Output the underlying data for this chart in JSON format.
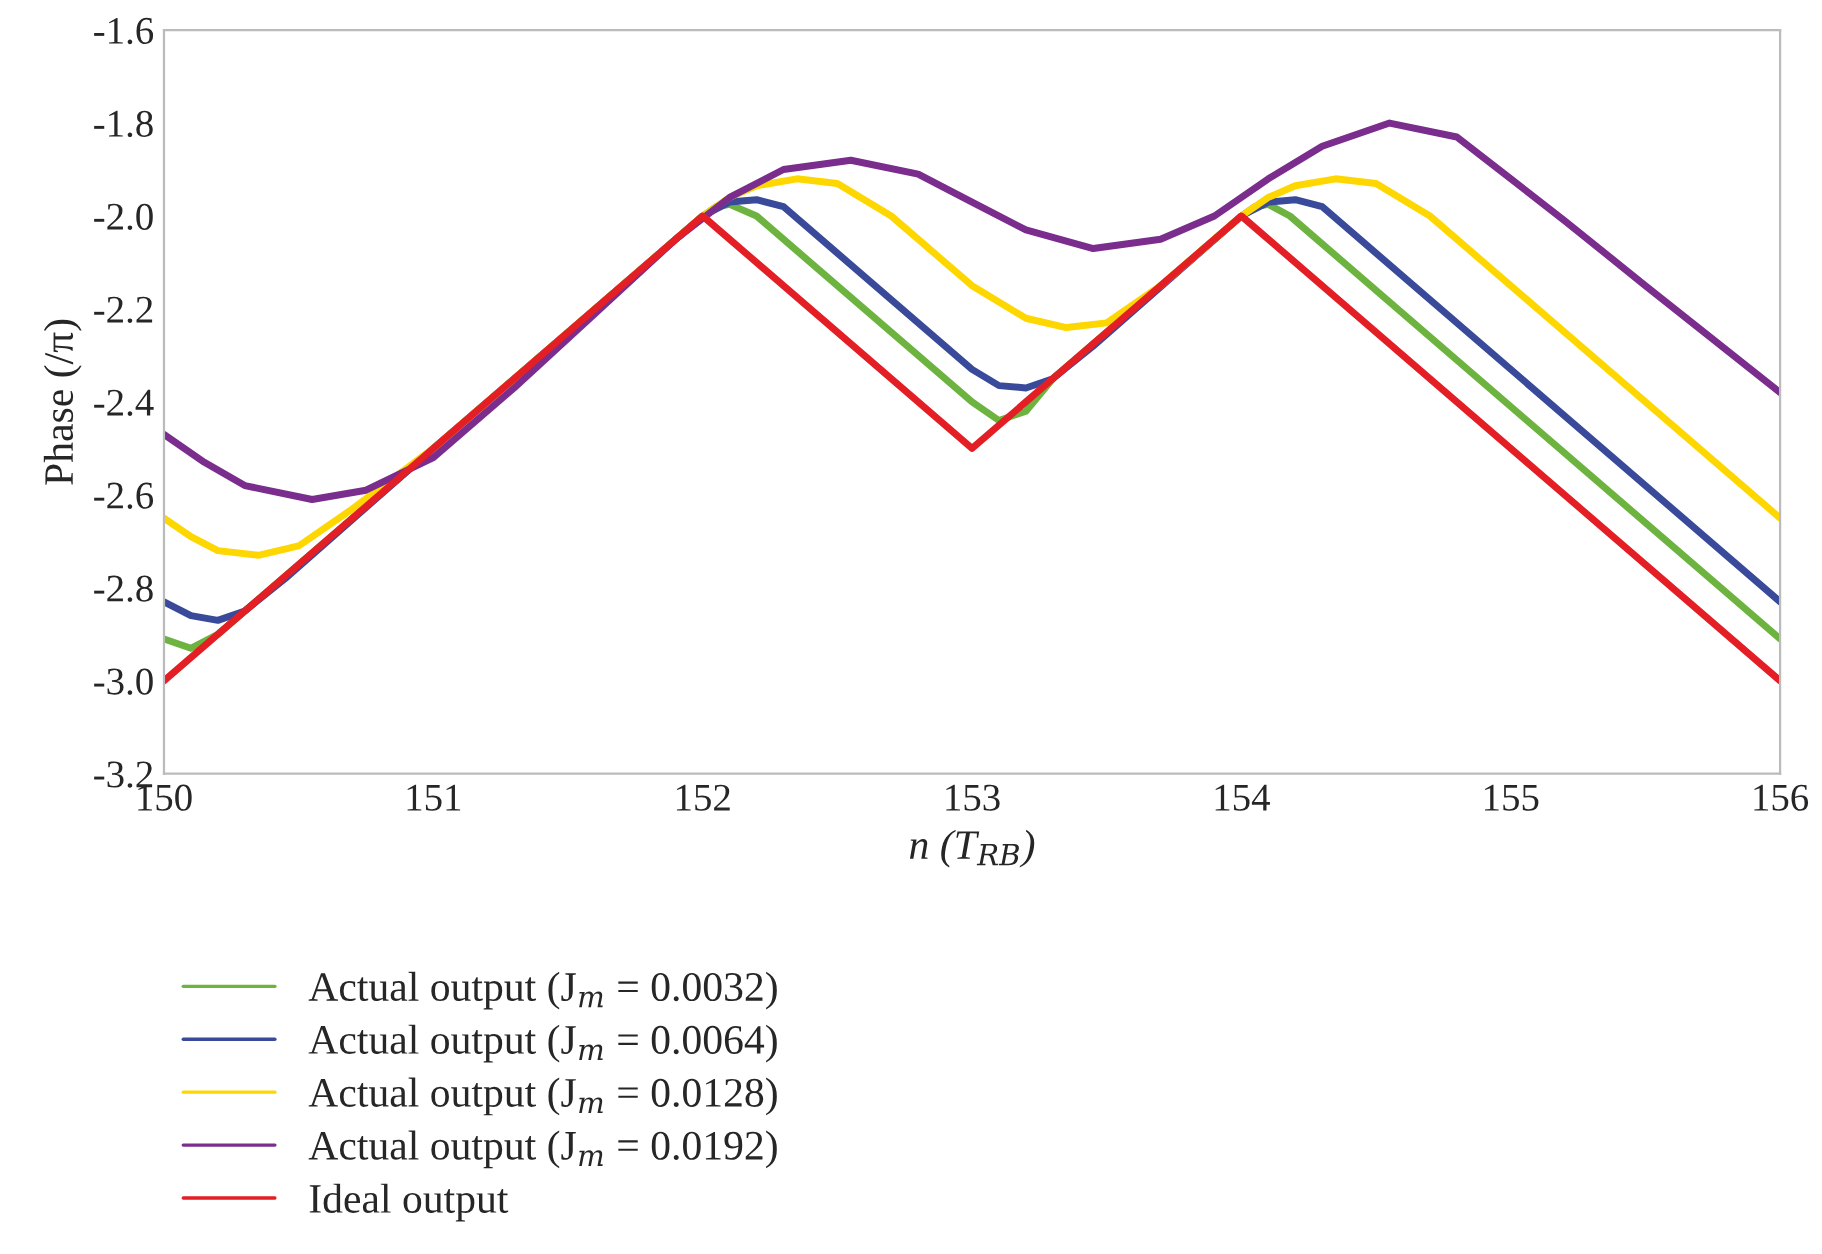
{
  "chart_data": {
    "type": "line",
    "xlabel": "n (T$_{RB}$)",
    "ylabel": "Phase (/π)",
    "xlim": [
      150,
      156
    ],
    "xticks": [
      150,
      151,
      152,
      153,
      154,
      155,
      156
    ],
    "ylim": [
      -3.2,
      -1.6
    ],
    "yticks": [
      {
        "value": -3.2,
        "label": "-3.2"
      },
      {
        "value": -3.0,
        "label": "-3.0"
      },
      {
        "value": -2.8,
        "label": "-2.8"
      },
      {
        "value": -2.6,
        "label": "-2.6"
      },
      {
        "value": -2.4,
        "label": "-2.4"
      },
      {
        "value": -2.2,
        "label": "-2.2"
      },
      {
        "value": -2.0,
        "label": "-2.0"
      },
      {
        "value": -1.8,
        "label": "-1.8"
      },
      {
        "value": -1.6,
        "label": "-1.6"
      }
    ],
    "grid": false,
    "legend": "bottom",
    "line_style": "solid",
    "marker": "none",
    "series": [
      {
        "name": "Actual output (J$_{m}$ = 0.0032)",
        "color": "#6db33f",
        "x": [
          150,
          150.1,
          150.2,
          150.3,
          151,
          152,
          152.05,
          152.1,
          152.2,
          153,
          153.1,
          153.2,
          153.3,
          154,
          154.05,
          154.1,
          154.18,
          156
        ],
        "values": [
          -2.91,
          -2.93,
          -2.9,
          -2.85,
          -2.5,
          -2.0,
          -1.98,
          -1.975,
          -2.0,
          -2.4,
          -2.44,
          -2.42,
          -2.35,
          -2.0,
          -1.98,
          -1.975,
          -2.0,
          -2.91
        ]
      },
      {
        "name": "Actual output (J$_{m}$ = 0.0064)",
        "color": "#3a4a9a",
        "x": [
          150,
          150.1,
          150.2,
          150.3,
          150.45,
          151,
          152,
          152.1,
          152.2,
          152.3,
          152.4,
          153,
          153.1,
          153.2,
          153.3,
          153.45,
          154,
          154.1,
          154.2,
          154.3,
          154.4,
          156
        ],
        "values": [
          -2.83,
          -2.86,
          -2.87,
          -2.85,
          -2.78,
          -2.5,
          -2.0,
          -1.97,
          -1.965,
          -1.98,
          -2.03,
          -2.33,
          -2.365,
          -2.37,
          -2.35,
          -2.28,
          -2.0,
          -1.97,
          -1.965,
          -1.98,
          -2.03,
          -2.83
        ]
      },
      {
        "name": "Actual output (J$_{m}$ = 0.0128)",
        "color": "#ffd700",
        "x": [
          150,
          150.1,
          150.2,
          150.35,
          150.5,
          150.7,
          151,
          151.9,
          152,
          152.1,
          152.2,
          152.35,
          152.5,
          152.7,
          153,
          153.2,
          153.35,
          153.5,
          153.7,
          154,
          154.1,
          154.2,
          154.35,
          154.5,
          154.7,
          156
        ],
        "values": [
          -2.65,
          -2.69,
          -2.72,
          -2.73,
          -2.71,
          -2.63,
          -2.5,
          -2.05,
          -2.0,
          -1.96,
          -1.935,
          -1.92,
          -1.93,
          -2.0,
          -2.15,
          -2.22,
          -2.24,
          -2.23,
          -2.15,
          -2.0,
          -1.96,
          -1.935,
          -1.92,
          -1.93,
          -2.0,
          -2.65
        ]
      },
      {
        "name": "Actual output (J$_{m}$ = 0.0192)",
        "color": "#7b2d8e",
        "x": [
          150,
          150.15,
          150.3,
          150.55,
          150.75,
          151,
          151.3,
          151.6,
          151.9,
          152.1,
          152.3,
          152.55,
          152.8,
          153,
          153.2,
          153.45,
          153.7,
          153.9,
          154.1,
          154.3,
          154.55,
          154.8,
          155,
          155.2,
          155.5,
          156
        ],
        "values": [
          -2.47,
          -2.53,
          -2.58,
          -2.61,
          -2.59,
          -2.52,
          -2.37,
          -2.21,
          -2.05,
          -1.96,
          -1.9,
          -1.88,
          -1.91,
          -1.97,
          -2.03,
          -2.07,
          -2.05,
          -2.0,
          -1.92,
          -1.85,
          -1.8,
          -1.83,
          -1.92,
          -2.01,
          -2.15,
          -2.38
        ]
      },
      {
        "name": "Ideal output",
        "color": "#e31e24",
        "x": [
          150,
          152,
          153,
          154,
          156
        ],
        "values": [
          -3.0,
          -2.0,
          -2.5,
          -2.0,
          -3.0
        ]
      }
    ]
  }
}
